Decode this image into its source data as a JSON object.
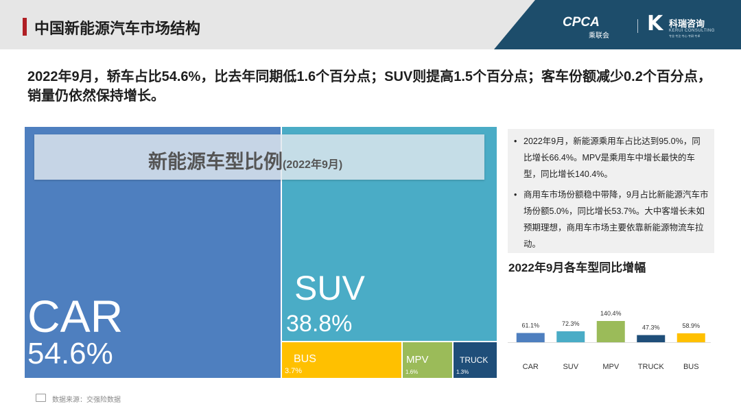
{
  "header": {
    "title": "中国新能源汽车市场结构",
    "logo_cpca": "CPCA",
    "logo_cpca_sub": "乘联会",
    "logo_k": "K",
    "logo_keri": "科瑞咨询",
    "logo_keri_sub": "KERUI CONSULTING",
    "logo_keri_sub2": "专业·专注·专心·专研·专卓"
  },
  "headline": "2022年9月，轿车占比54.6%，比去年同期低1.6个百分点；SUV则提高1.5个百分点；客车份额减少0.2个百分点，销量仍依然保持增长。",
  "treemap": {
    "title": "新能源车型比例",
    "subtitle": "(2022年9月)",
    "tiles": [
      {
        "name": "CAR",
        "pct": "54.6%",
        "value": 54.6,
        "color": "#4e7fbf"
      },
      {
        "name": "SUV",
        "pct": "38.8%",
        "value": 38.8,
        "color": "#4aacc6"
      },
      {
        "name": "BUS",
        "pct": "3.7%",
        "value": 3.7,
        "color": "#ffc000"
      },
      {
        "name": "MPV",
        "pct": "1.6%",
        "value": 1.6,
        "color": "#9bbb59"
      },
      {
        "name": "TRUCK",
        "pct": "1.3%",
        "value": 1.3,
        "color": "#1f4e79"
      }
    ]
  },
  "notes": [
    {
      "bullet": "•",
      "text": "2022年9月，新能源乘用车占比达到95.0%，同比增长66.4%。MPV是乘用车中增长最快的车型，同比增长140.4%。"
    },
    {
      "bullet": "•",
      "text": "商用车市场份额稳中带降，9月占比新能源汽车市场份额5.0%，同比增长53.7%。大中客增长未如预期理想，商用车市场主要依靠新能源物流车拉动。"
    }
  ],
  "chart_data": {
    "type": "bar",
    "title": "2022年9月各车型同比增幅",
    "categories": [
      "CAR",
      "SUV",
      "MPV",
      "TRUCK",
      "BUS"
    ],
    "values": [
      61.1,
      72.3,
      140.4,
      47.3,
      58.9
    ],
    "value_labels": [
      "61.1%",
      "72.3%",
      "140.4%",
      "47.3%",
      "58.9%"
    ],
    "colors": [
      "#4e7fbf",
      "#4aacc6",
      "#9bbb59",
      "#1f4e79",
      "#ffc000"
    ],
    "xlabel": "",
    "ylabel": "",
    "grid": false
  },
  "footer": {
    "source": "数据来源：交强险数据"
  }
}
